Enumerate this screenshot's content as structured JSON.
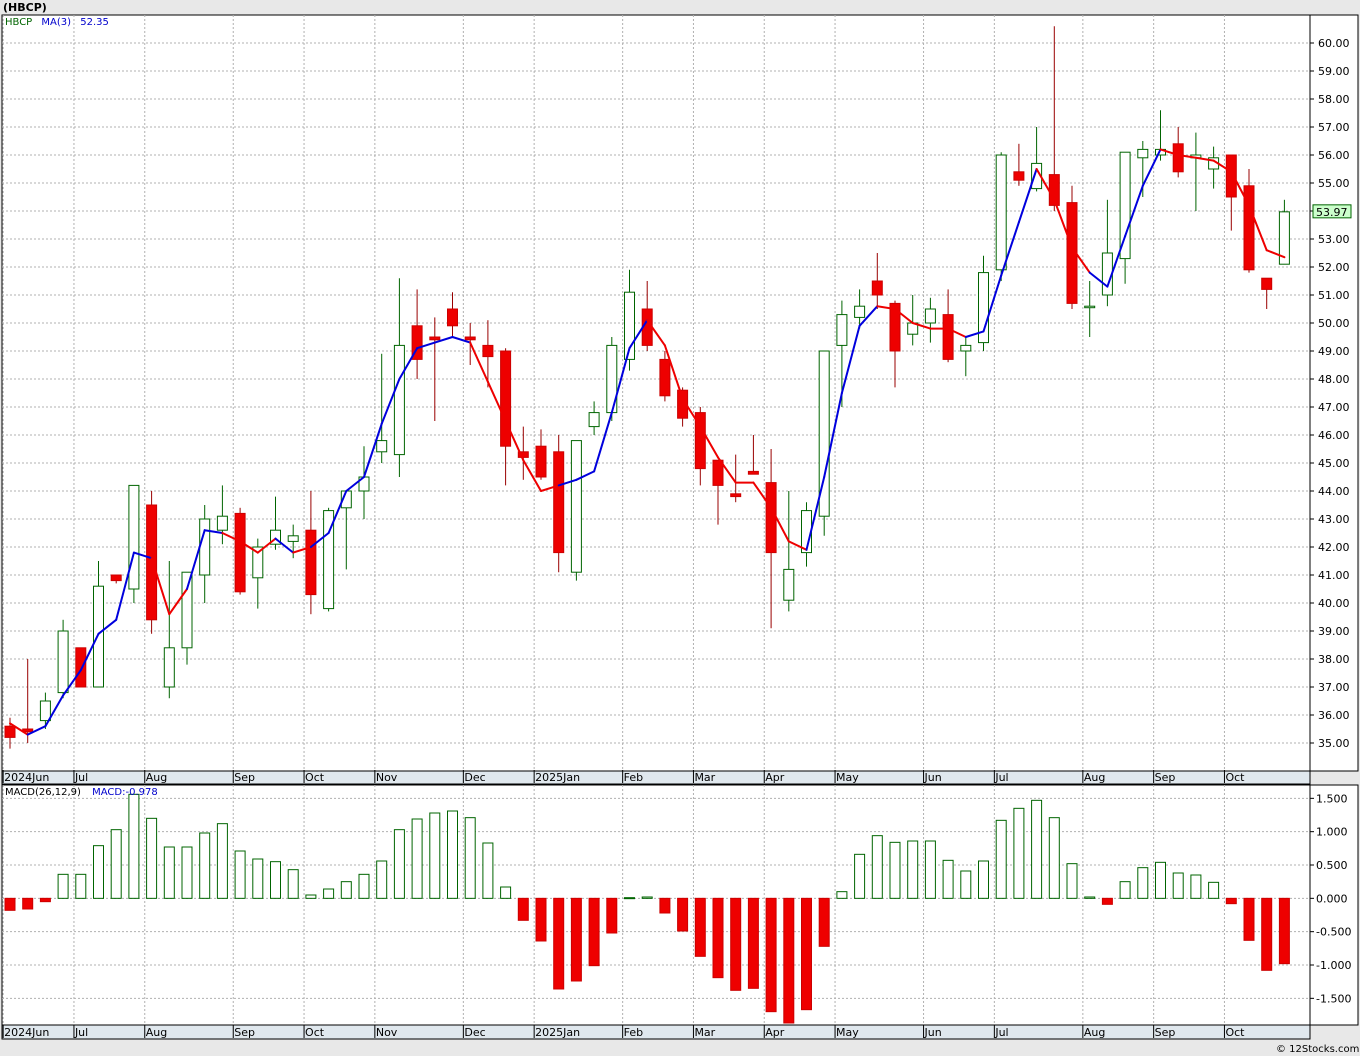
{
  "chart_data": [
    {
      "type": "candlestick",
      "title": "(HBCP)",
      "legend": {
        "symbol": "HBCP",
        "ma_label": "MA(3)",
        "ma_value": "52.35"
      },
      "last_price_label": "53.97",
      "ylim": [
        34,
        61
      ],
      "y_ticks": [
        "35.00",
        "36.00",
        "37.00",
        "38.00",
        "39.00",
        "40.00",
        "41.00",
        "42.00",
        "43.00",
        "44.00",
        "45.00",
        "46.00",
        "47.00",
        "48.00",
        "49.00",
        "50.00",
        "51.00",
        "52.00",
        "53.00",
        "54.00",
        "55.00",
        "56.00",
        "57.00",
        "58.00",
        "59.00",
        "60.00"
      ],
      "x_labels": [
        "2024Jun",
        "Jul",
        "Aug",
        "Sep",
        "Oct",
        "Nov",
        "Dec",
        "2025Jan",
        "Feb",
        "Mar",
        "Apr",
        "May",
        "Jun",
        "Jul",
        "Aug",
        "Sep",
        "Oct"
      ],
      "weeks": [
        "2024-06-07",
        "2024-06-14",
        "2024-06-21",
        "2024-06-28",
        "2024-07-05",
        "2024-07-12",
        "2024-07-19",
        "2024-07-26",
        "2024-08-02",
        "2024-08-09",
        "2024-08-16",
        "2024-08-23",
        "2024-08-30",
        "2024-09-06",
        "2024-09-13",
        "2024-09-20",
        "2024-09-27",
        "2024-10-04",
        "2024-10-11",
        "2024-10-18",
        "2024-10-25",
        "2024-11-01",
        "2024-11-08",
        "2024-11-15",
        "2024-11-22",
        "2024-11-29",
        "2024-12-06",
        "2024-12-13",
        "2024-12-20",
        "2024-12-27",
        "2025-01-03",
        "2025-01-10",
        "2025-01-17",
        "2025-01-24",
        "2025-01-31",
        "2025-02-07",
        "2025-02-14",
        "2025-02-21",
        "2025-02-28",
        "2025-03-07",
        "2025-03-14",
        "2025-03-21",
        "2025-03-28",
        "2025-04-04",
        "2025-04-11",
        "2025-04-18",
        "2025-04-25",
        "2025-05-02",
        "2025-05-09",
        "2025-05-16",
        "2025-05-23",
        "2025-05-30",
        "2025-06-06",
        "2025-06-13",
        "2025-06-20",
        "2025-06-27",
        "2025-07-04",
        "2025-07-11",
        "2025-07-18",
        "2025-07-25",
        "2025-08-01",
        "2025-08-08",
        "2025-08-15",
        "2025-08-22",
        "2025-08-29",
        "2025-09-05",
        "2025-09-12",
        "2025-09-19",
        "2025-09-26",
        "2025-10-03",
        "2025-10-10",
        "2025-10-17"
      ],
      "candles": [
        {
          "o": 35.6,
          "h": 35.9,
          "l": 34.8,
          "c": 35.2
        },
        {
          "o": 35.5,
          "h": 38.0,
          "l": 35.0,
          "c": 35.4
        },
        {
          "o": 35.8,
          "h": 36.8,
          "l": 35.5,
          "c": 36.5
        },
        {
          "o": 36.8,
          "h": 39.4,
          "l": 36.6,
          "c": 39.0
        },
        {
          "o": 38.4,
          "h": 38.4,
          "l": 37.0,
          "c": 37.0
        },
        {
          "o": 37.0,
          "h": 41.5,
          "l": 37.0,
          "c": 40.6
        },
        {
          "o": 41.0,
          "h": 41.0,
          "l": 40.7,
          "c": 40.8
        },
        {
          "o": 40.5,
          "h": 44.2,
          "l": 40.0,
          "c": 44.2
        },
        {
          "o": 43.5,
          "h": 44.0,
          "l": 38.9,
          "c": 39.4
        },
        {
          "o": 37.0,
          "h": 41.5,
          "l": 36.6,
          "c": 38.4
        },
        {
          "o": 38.4,
          "h": 41.1,
          "l": 37.8,
          "c": 41.1
        },
        {
          "o": 41.0,
          "h": 43.5,
          "l": 40.0,
          "c": 43.0
        },
        {
          "o": 42.6,
          "h": 44.2,
          "l": 42.1,
          "c": 43.1
        },
        {
          "o": 43.2,
          "h": 43.4,
          "l": 40.3,
          "c": 40.4
        },
        {
          "o": 40.9,
          "h": 42.3,
          "l": 39.8,
          "c": 42.0
        },
        {
          "o": 42.1,
          "h": 43.8,
          "l": 41.9,
          "c": 42.6
        },
        {
          "o": 42.2,
          "h": 42.8,
          "l": 41.6,
          "c": 42.4
        },
        {
          "o": 42.6,
          "h": 44.0,
          "l": 39.6,
          "c": 40.3
        },
        {
          "o": 39.8,
          "h": 43.4,
          "l": 39.7,
          "c": 43.3
        },
        {
          "o": 43.4,
          "h": 44.0,
          "l": 41.2,
          "c": 44.0
        },
        {
          "o": 44.0,
          "h": 45.6,
          "l": 43.0,
          "c": 44.5
        },
        {
          "o": 45.4,
          "h": 48.9,
          "l": 45.0,
          "c": 45.8
        },
        {
          "o": 45.3,
          "h": 51.6,
          "l": 44.5,
          "c": 49.2
        },
        {
          "o": 49.9,
          "h": 51.2,
          "l": 48.0,
          "c": 48.7
        },
        {
          "o": 49.5,
          "h": 50.2,
          "l": 46.5,
          "c": 49.4
        },
        {
          "o": 50.5,
          "h": 51.1,
          "l": 49.5,
          "c": 49.9
        },
        {
          "o": 49.5,
          "h": 50.0,
          "l": 48.5,
          "c": 49.4
        },
        {
          "o": 49.2,
          "h": 50.1,
          "l": 47.7,
          "c": 48.8
        },
        {
          "o": 49.0,
          "h": 49.1,
          "l": 44.2,
          "c": 45.6
        },
        {
          "o": 45.4,
          "h": 46.3,
          "l": 44.4,
          "c": 45.2
        },
        {
          "o": 45.6,
          "h": 46.2,
          "l": 44.4,
          "c": 44.5
        },
        {
          "o": 45.4,
          "h": 46.0,
          "l": 41.1,
          "c": 41.8
        },
        {
          "o": 41.1,
          "h": 45.8,
          "l": 40.8,
          "c": 45.8
        },
        {
          "o": 46.3,
          "h": 47.2,
          "l": 46.0,
          "c": 46.8
        },
        {
          "o": 46.8,
          "h": 49.5,
          "l": 46.5,
          "c": 49.2
        },
        {
          "o": 48.7,
          "h": 51.9,
          "l": 48.3,
          "c": 51.1
        },
        {
          "o": 50.5,
          "h": 51.5,
          "l": 49.0,
          "c": 49.2
        },
        {
          "o": 48.7,
          "h": 49.0,
          "l": 47.2,
          "c": 47.4
        },
        {
          "o": 47.6,
          "h": 47.7,
          "l": 46.3,
          "c": 46.6
        },
        {
          "o": 46.8,
          "h": 47.0,
          "l": 44.2,
          "c": 44.8
        },
        {
          "o": 45.1,
          "h": 45.1,
          "l": 42.8,
          "c": 44.2
        },
        {
          "o": 43.9,
          "h": 45.3,
          "l": 43.6,
          "c": 43.8
        },
        {
          "o": 44.7,
          "h": 46.0,
          "l": 44.6,
          "c": 44.6
        },
        {
          "o": 44.3,
          "h": 45.5,
          "l": 39.1,
          "c": 41.8
        },
        {
          "o": 40.1,
          "h": 44.0,
          "l": 39.7,
          "c": 41.2
        },
        {
          "o": 41.8,
          "h": 43.6,
          "l": 41.3,
          "c": 43.3
        },
        {
          "o": 43.1,
          "h": 49.0,
          "l": 42.4,
          "c": 49.0
        },
        {
          "o": 49.2,
          "h": 50.8,
          "l": 47.0,
          "c": 50.3
        },
        {
          "o": 50.2,
          "h": 51.2,
          "l": 49.8,
          "c": 50.6
        },
        {
          "o": 51.5,
          "h": 52.5,
          "l": 50.5,
          "c": 51.0
        },
        {
          "o": 50.7,
          "h": 50.8,
          "l": 47.7,
          "c": 49.0
        },
        {
          "o": 49.6,
          "h": 51.0,
          "l": 49.2,
          "c": 50.0
        },
        {
          "o": 50.0,
          "h": 50.9,
          "l": 49.3,
          "c": 50.5
        },
        {
          "o": 50.3,
          "h": 51.2,
          "l": 48.6,
          "c": 48.7
        },
        {
          "o": 49.0,
          "h": 49.5,
          "l": 48.1,
          "c": 49.2
        },
        {
          "o": 49.3,
          "h": 52.4,
          "l": 49.0,
          "c": 51.8
        },
        {
          "o": 51.9,
          "h": 56.1,
          "l": 51.5,
          "c": 56.0
        },
        {
          "o": 55.4,
          "h": 56.4,
          "l": 54.9,
          "c": 55.1
        },
        {
          "o": 54.8,
          "h": 57.0,
          "l": 54.7,
          "c": 55.7
        },
        {
          "o": 55.3,
          "h": 60.6,
          "l": 54.0,
          "c": 54.2
        },
        {
          "o": 54.3,
          "h": 54.9,
          "l": 50.5,
          "c": 50.7
        },
        {
          "o": 50.6,
          "h": 51.5,
          "l": 49.5,
          "c": 50.6
        },
        {
          "o": 51.0,
          "h": 54.4,
          "l": 50.6,
          "c": 52.5
        },
        {
          "o": 52.3,
          "h": 56.1,
          "l": 51.4,
          "c": 56.1
        },
        {
          "o": 55.9,
          "h": 56.5,
          "l": 54.5,
          "c": 56.2
        },
        {
          "o": 56.0,
          "h": 57.6,
          "l": 55.8,
          "c": 56.2
        },
        {
          "o": 56.4,
          "h": 57.0,
          "l": 55.2,
          "c": 55.4
        },
        {
          "o": 55.9,
          "h": 56.8,
          "l": 54.0,
          "c": 56.0
        },
        {
          "o": 55.5,
          "h": 56.3,
          "l": 54.8,
          "c": 55.9
        },
        {
          "o": 56.0,
          "h": 56.0,
          "l": 53.3,
          "c": 54.5
        },
        {
          "o": 54.9,
          "h": 55.5,
          "l": 51.8,
          "c": 51.9
        },
        {
          "o": 51.6,
          "h": 51.6,
          "l": 50.5,
          "c": 51.2
        },
        {
          "o": 52.1,
          "h": 54.4,
          "l": 52.1,
          "c": 53.97
        }
      ],
      "ma3": [
        35.7,
        35.3,
        35.6,
        36.7,
        37.6,
        38.9,
        39.4,
        41.8,
        41.6,
        39.6,
        40.5,
        42.6,
        42.5,
        42.2,
        41.8,
        42.3,
        41.8,
        42.0,
        42.5,
        44.0,
        44.5,
        46.4,
        48.0,
        49.1,
        49.3,
        49.5,
        49.3,
        47.9,
        46.5,
        45.1,
        44.0,
        44.2,
        44.4,
        44.7,
        46.8,
        49.1,
        50.1,
        49.2,
        47.3,
        46.3,
        45.2,
        44.3,
        44.3,
        43.4,
        42.2,
        41.9,
        44.5,
        47.5,
        49.9,
        50.6,
        50.5,
        50.0,
        49.8,
        49.8,
        49.5,
        49.7,
        51.7,
        53.6,
        55.5,
        54.4,
        52.7,
        51.8,
        51.3,
        53.1,
        54.9,
        56.2,
        56.0,
        55.9,
        55.8,
        55.4,
        54.2,
        52.6,
        52.35
      ],
      "ma3_colors": [
        "red",
        "blue",
        "blue",
        "blue",
        "blue",
        "blue",
        "blue",
        "blue",
        "red",
        "red",
        "blue",
        "blue",
        "red",
        "red",
        "red",
        "blue",
        "red",
        "blue",
        "blue",
        "blue",
        "blue",
        "blue",
        "blue",
        "blue",
        "blue",
        "blue",
        "red",
        "red",
        "red",
        "red",
        "red",
        "blue",
        "blue",
        "blue",
        "blue",
        "blue",
        "red",
        "red",
        "red",
        "red",
        "red",
        "red",
        "red",
        "red",
        "red",
        "blue",
        "blue",
        "blue",
        "blue",
        "red",
        "red",
        "red",
        "red",
        "red",
        "blue",
        "blue",
        "blue",
        "blue",
        "red",
        "red",
        "red",
        "blue",
        "blue",
        "blue",
        "blue",
        "red",
        "red",
        "red",
        "red",
        "red",
        "red",
        "red",
        "red"
      ]
    },
    {
      "type": "bar",
      "title": "MACD(26,12,9)",
      "legend": {
        "label": "MACD(26,12,9)",
        "value_label": "MACD:-0.978"
      },
      "ylim": [
        -1.9,
        1.7
      ],
      "y_ticks": [
        "1.500",
        "1.000",
        "0.500",
        "0.000",
        "-0.500",
        "-1.000",
        "-1.500"
      ],
      "x_labels": [
        "2024Jun",
        "Jul",
        "Aug",
        "Sep",
        "Oct",
        "Nov",
        "Dec",
        "2025Jan",
        "Feb",
        "Mar",
        "Apr",
        "May",
        "Jun",
        "Jul",
        "Aug",
        "Sep",
        "Oct"
      ],
      "values": [
        -0.18,
        -0.16,
        -0.05,
        0.36,
        0.36,
        0.79,
        1.03,
        1.56,
        1.2,
        0.77,
        0.77,
        0.98,
        1.12,
        0.71,
        0.59,
        0.55,
        0.43,
        0.05,
        0.14,
        0.25,
        0.36,
        0.56,
        1.03,
        1.19,
        1.28,
        1.31,
        1.21,
        0.83,
        0.17,
        -0.33,
        -0.64,
        -1.36,
        -1.24,
        -1.01,
        -0.52,
        0.01,
        0.02,
        -0.22,
        -0.49,
        -0.87,
        -1.19,
        -1.38,
        -1.35,
        -1.7,
        -1.87,
        -1.67,
        -0.72,
        0.1,
        0.66,
        0.94,
        0.84,
        0.86,
        0.86,
        0.57,
        0.41,
        0.56,
        1.17,
        1.35,
        1.47,
        1.21,
        0.52,
        0.02,
        -0.09,
        0.25,
        0.46,
        0.54,
        0.38,
        0.35,
        0.24,
        -0.08,
        -0.63,
        -1.08,
        -0.98
      ]
    }
  ],
  "footer": {
    "copyright": "© 12Stocks.com"
  }
}
